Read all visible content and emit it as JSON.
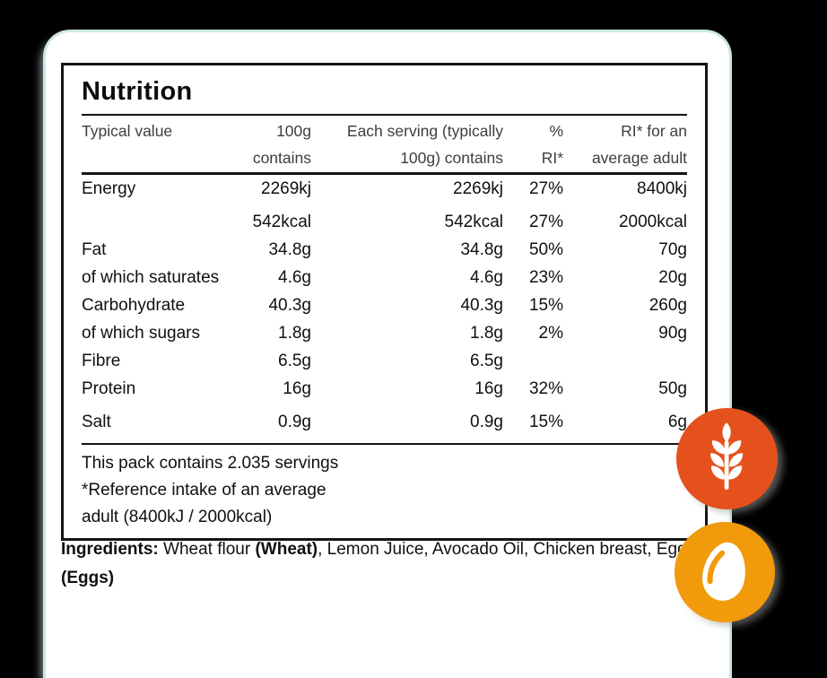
{
  "colors": {
    "background": "#000000",
    "card_border": "#CDE7E1",
    "table_ink": "#141414",
    "header_text": "#3E3E3E",
    "body_text": "#101010"
  },
  "nutrition": {
    "title": "Nutrition",
    "header_cols": [
      {
        "id": "label",
        "lines": [
          "Typical value"
        ],
        "align": "left"
      },
      {
        "id": "per100g",
        "lines": [
          "100g",
          "contains"
        ],
        "align": "right"
      },
      {
        "id": "serving",
        "lines": [
          "Each serving (typically",
          "100g) contains"
        ],
        "align": "right"
      },
      {
        "id": "pct-ri",
        "lines": [
          "%",
          "RI*"
        ],
        "align": "right"
      },
      {
        "id": "ri-adult",
        "lines": [
          "RI* for an",
          "average adult"
        ],
        "align": "right"
      }
    ],
    "rows": [
      {
        "label": "Energy",
        "per100g": "2269kj",
        "per_serving": "2269kj",
        "pct_ri": "27%",
        "ri_adult": "8400kj",
        "spaced": false
      },
      {
        "label": "",
        "per100g": "542kcal",
        "per_serving": "542kcal",
        "pct_ri": "27%",
        "ri_adult": "2000kcal",
        "spaced": true
      },
      {
        "label": "Fat",
        "per100g": "34.8g",
        "per_serving": "34.8g",
        "pct_ri": "50%",
        "ri_adult": "70g",
        "spaced": false
      },
      {
        "label": "of which saturates",
        "per100g": "4.6g",
        "per_serving": "4.6g",
        "pct_ri": "23%",
        "ri_adult": "20g",
        "spaced": false
      },
      {
        "label": "Carbohydrate",
        "per100g": "40.3g",
        "per_serving": "40.3g",
        "pct_ri": "15%",
        "ri_adult": "260g",
        "spaced": false
      },
      {
        "label": "of which sugars",
        "per100g": "1.8g",
        "per_serving": "1.8g",
        "pct_ri": "2%",
        "ri_adult": "90g",
        "spaced": false
      },
      {
        "label": "Fibre",
        "per100g": "6.5g",
        "per_serving": "6.5g",
        "pct_ri": "",
        "ri_adult": "",
        "spaced": false
      },
      {
        "label": "Protein",
        "per100g": "16g",
        "per_serving": "16g",
        "pct_ri": "32%",
        "ri_adult": "50g",
        "spaced": false
      },
      {
        "label": "Salt",
        "per100g": "0.9g",
        "per_serving": "0.9g",
        "pct_ri": "15%",
        "ri_adult": "6g",
        "spaced": true
      }
    ],
    "footnotes": [
      "This pack contains 2.035 servings",
      "*Reference intake of an average",
      "adult (8400kJ / 2000kcal)"
    ]
  },
  "ingredients": {
    "segments": [
      {
        "text": "Ingredients:",
        "bold": true
      },
      {
        "text": " Wheat flour ",
        "bold": false
      },
      {
        "text": "(Wheat)",
        "bold": true
      },
      {
        "text": ", Lemon Juice, Avocado Oil, Chicken breast, Egg ",
        "bold": false
      },
      {
        "text": "(Eggs)",
        "bold": true
      }
    ]
  },
  "allergen_badges": [
    {
      "name": "wheat",
      "color": "#E5511C"
    },
    {
      "name": "egg",
      "color": "#F19A0B"
    }
  ]
}
